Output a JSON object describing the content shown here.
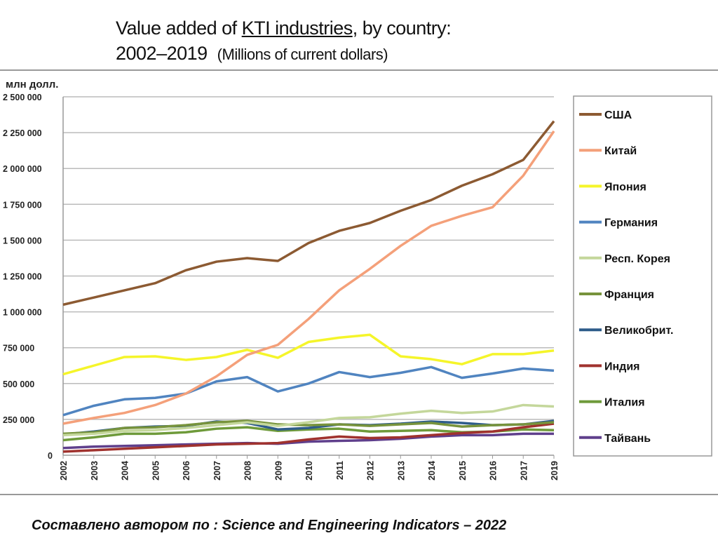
{
  "title": {
    "line1_pre": "Value added of ",
    "line1_link": "KTI industries",
    "line1_post": ", by country:",
    "line2": "2002–2019",
    "line2_units": "(Millions of current dollars)"
  },
  "footer": "Составлено автором по : Science and Engineering Indicators – 2022",
  "chart_data": {
    "type": "line",
    "ylabel": "млн долл.",
    "ylim": [
      0,
      2500000
    ],
    "yticks": [
      "0",
      "250 000",
      "500 000",
      "750 000",
      "1 000 000",
      "1 250 000",
      "1 500 000",
      "1 750 000",
      "2 000 000",
      "2 250 000",
      "2 500 000"
    ],
    "grid": true,
    "legend": "right",
    "categories": [
      "2002",
      "2003",
      "2004",
      "2005",
      "2006",
      "2007",
      "2008",
      "2009",
      "2010",
      "2011",
      "2012",
      "2013",
      "2014",
      "2015",
      "2016",
      "2017",
      "2019"
    ],
    "series": [
      {
        "name": "США",
        "color": "#8C5A32",
        "values": [
          1050000,
          1100000,
          1150000,
          1200000,
          1290000,
          1350000,
          1375000,
          1355000,
          1480000,
          1565000,
          1620000,
          1705000,
          1780000,
          1880000,
          1960000,
          2060000,
          2330000
        ]
      },
      {
        "name": "Китай",
        "color": "#F4A07A",
        "values": [
          220000,
          260000,
          295000,
          350000,
          430000,
          550000,
          700000,
          770000,
          950000,
          1150000,
          1300000,
          1460000,
          1600000,
          1670000,
          1730000,
          1950000,
          2260000
        ]
      },
      {
        "name": "Япония",
        "color": "#F5F52A",
        "values": [
          565000,
          625000,
          685000,
          690000,
          665000,
          685000,
          735000,
          680000,
          790000,
          820000,
          840000,
          690000,
          670000,
          635000,
          705000,
          705000,
          730000
        ]
      },
      {
        "name": "Германия",
        "color": "#5084C0",
        "values": [
          280000,
          345000,
          390000,
          400000,
          430000,
          515000,
          545000,
          445000,
          500000,
          580000,
          545000,
          575000,
          615000,
          540000,
          570000,
          605000,
          590000
        ]
      },
      {
        "name": "Респ.  Корея",
        "color": "#C4D79B",
        "values": [
          140000,
          150000,
          170000,
          175000,
          190000,
          210000,
          230000,
          205000,
          230000,
          260000,
          265000,
          290000,
          310000,
          295000,
          305000,
          350000,
          340000
        ]
      },
      {
        "name": "Франция",
        "color": "#77933C",
        "values": [
          150000,
          160000,
          190000,
          195000,
          210000,
          230000,
          240000,
          215000,
          210000,
          215000,
          205000,
          215000,
          225000,
          200000,
          210000,
          215000,
          230000
        ]
      },
      {
        "name": "Великобрит.",
        "color": "#2E5C8A",
        "values": [
          145000,
          165000,
          190000,
          200000,
          205000,
          235000,
          225000,
          180000,
          190000,
          215000,
          210000,
          220000,
          235000,
          225000,
          210000,
          215000,
          240000
        ]
      },
      {
        "name": "Индия",
        "color": "#A0322E",
        "values": [
          25000,
          35000,
          45000,
          55000,
          65000,
          75000,
          80000,
          85000,
          110000,
          130000,
          120000,
          125000,
          140000,
          155000,
          165000,
          195000,
          220000
        ]
      },
      {
        "name": "Италия",
        "color": "#6E9A3A",
        "values": [
          105000,
          125000,
          150000,
          150000,
          160000,
          185000,
          195000,
          170000,
          180000,
          185000,
          165000,
          170000,
          175000,
          160000,
          165000,
          180000,
          175000
        ]
      },
      {
        "name": "Тайвань",
        "color": "#5F3F8C",
        "values": [
          50000,
          60000,
          65000,
          70000,
          75000,
          80000,
          85000,
          80000,
          95000,
          100000,
          105000,
          115000,
          130000,
          140000,
          140000,
          150000,
          150000
        ]
      }
    ]
  }
}
